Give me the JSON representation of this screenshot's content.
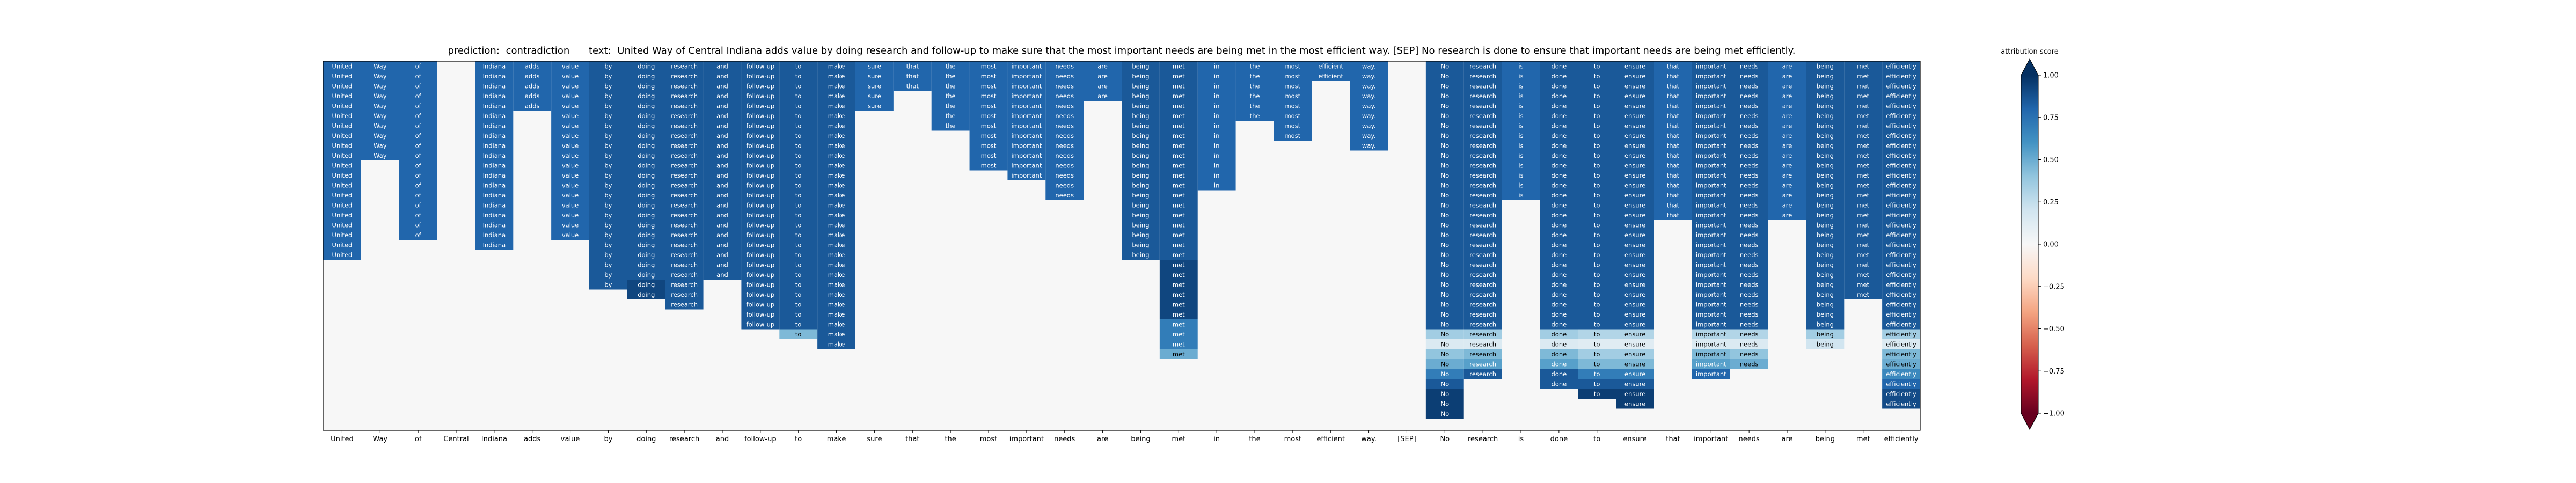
{
  "chart_data": {
    "type": "heatmap",
    "prediction_label": "prediction:",
    "prediction_value": "contradiction",
    "text_label": "text:",
    "text_value": "United Way of Central Indiana adds value by doing research and follow-up to make sure that the most important needs are being met in the most efficient way. [SEP] No research is done to ensure that important needs are being met efficiently.",
    "tokens": [
      "United",
      "Way",
      "of",
      "Central",
      "Indiana",
      "adds",
      "value",
      "by",
      "doing",
      "research",
      "and",
      "follow-up",
      "to",
      "make",
      "sure",
      "that",
      "the",
      "most",
      "important",
      "needs",
      "are",
      "being",
      "met",
      "in",
      "the",
      "most",
      "efficient",
      "way.",
      "[SEP]",
      "No",
      "research",
      "is",
      "done",
      "to",
      "ensure",
      "that",
      "important",
      "needs",
      "are",
      "being",
      "met",
      "efficiently"
    ],
    "row_count": 36,
    "columns": [
      {
        "runs": [
          [
            0,
            20,
            0.8
          ]
        ]
      },
      {
        "runs": [
          [
            0,
            10,
            0.8
          ]
        ]
      },
      {
        "runs": [
          [
            0,
            18,
            0.8
          ]
        ]
      },
      {
        "runs": [
          [
            0,
            1,
            0
          ]
        ]
      },
      {
        "runs": [
          [
            0,
            19,
            0.8
          ]
        ]
      },
      {
        "runs": [
          [
            0,
            5,
            0.8
          ]
        ]
      },
      {
        "runs": [
          [
            0,
            18,
            0.8
          ]
        ]
      },
      {
        "runs": [
          [
            0,
            23,
            0.85
          ]
        ]
      },
      {
        "runs": [
          [
            0,
            22,
            0.85
          ],
          [
            22,
            24,
            0.92
          ]
        ]
      },
      {
        "runs": [
          [
            0,
            25,
            0.85
          ]
        ]
      },
      {
        "runs": [
          [
            0,
            22,
            0.85
          ]
        ]
      },
      {
        "runs": [
          [
            0,
            27,
            0.85
          ]
        ]
      },
      {
        "runs": [
          [
            0,
            27,
            0.85
          ],
          [
            27,
            28,
            0.45
          ]
        ]
      },
      {
        "runs": [
          [
            0,
            29,
            0.85
          ]
        ]
      },
      {
        "runs": [
          [
            0,
            5,
            0.8
          ]
        ]
      },
      {
        "runs": [
          [
            0,
            3,
            0.8
          ]
        ]
      },
      {
        "runs": [
          [
            0,
            7,
            0.8
          ]
        ]
      },
      {
        "runs": [
          [
            0,
            11,
            0.8
          ]
        ]
      },
      {
        "runs": [
          [
            0,
            12,
            0.8
          ]
        ]
      },
      {
        "runs": [
          [
            0,
            14,
            0.8
          ]
        ]
      },
      {
        "runs": [
          [
            0,
            4,
            0.8
          ]
        ]
      },
      {
        "runs": [
          [
            0,
            20,
            0.85
          ]
        ]
      },
      {
        "runs": [
          [
            0,
            20,
            0.85
          ],
          [
            20,
            26,
            0.92
          ],
          [
            26,
            29,
            0.7
          ],
          [
            29,
            30,
            0.5
          ]
        ]
      },
      {
        "runs": [
          [
            0,
            13,
            0.8
          ]
        ]
      },
      {
        "runs": [
          [
            0,
            6,
            0.8
          ]
        ]
      },
      {
        "runs": [
          [
            0,
            8,
            0.8
          ]
        ]
      },
      {
        "runs": [
          [
            0,
            2,
            0.8
          ]
        ]
      },
      {
        "runs": [
          [
            0,
            9,
            0.8
          ]
        ]
      },
      {
        "runs": [
          [
            0,
            1,
            0
          ]
        ]
      },
      {
        "runs": [
          [
            0,
            27,
            0.85
          ],
          [
            27,
            28,
            0.35
          ],
          [
            28,
            29,
            0.15
          ],
          [
            29,
            30,
            0.4
          ],
          [
            30,
            31,
            0.5
          ],
          [
            31,
            32,
            0.7
          ],
          [
            32,
            33,
            0.85
          ],
          [
            33,
            36,
            0.95
          ]
        ]
      },
      {
        "runs": [
          [
            0,
            27,
            0.85
          ],
          [
            27,
            28,
            0.35
          ],
          [
            28,
            29,
            0.15
          ],
          [
            29,
            30,
            0.45
          ],
          [
            30,
            31,
            0.55
          ],
          [
            31,
            32,
            0.85
          ]
        ]
      },
      {
        "runs": [
          [
            0,
            14,
            0.8
          ]
        ]
      },
      {
        "runs": [
          [
            0,
            27,
            0.85
          ],
          [
            27,
            28,
            0.35
          ],
          [
            28,
            29,
            0.15
          ],
          [
            29,
            30,
            0.45
          ],
          [
            30,
            31,
            0.55
          ],
          [
            31,
            32,
            0.85
          ],
          [
            32,
            33,
            0.85
          ]
        ]
      },
      {
        "runs": [
          [
            0,
            27,
            0.85
          ],
          [
            27,
            28,
            0.3
          ],
          [
            28,
            29,
            0.12
          ],
          [
            29,
            30,
            0.35
          ],
          [
            30,
            31,
            0.45
          ],
          [
            31,
            32,
            0.7
          ],
          [
            32,
            33,
            0.85
          ],
          [
            33,
            34,
            0.95
          ]
        ]
      },
      {
        "runs": [
          [
            0,
            27,
            0.85
          ],
          [
            27,
            28,
            0.3
          ],
          [
            28,
            29,
            0.12
          ],
          [
            29,
            30,
            0.35
          ],
          [
            30,
            31,
            0.45
          ],
          [
            31,
            32,
            0.7
          ],
          [
            32,
            33,
            0.85
          ],
          [
            33,
            35,
            0.95
          ]
        ]
      },
      {
        "runs": [
          [
            0,
            16,
            0.8
          ]
        ]
      },
      {
        "runs": [
          [
            0,
            27,
            0.85
          ],
          [
            27,
            28,
            0.3
          ],
          [
            28,
            29,
            0.15
          ],
          [
            29,
            30,
            0.45
          ],
          [
            30,
            31,
            0.55
          ],
          [
            31,
            32,
            0.8
          ]
        ]
      },
      {
        "runs": [
          [
            0,
            27,
            0.85
          ],
          [
            27,
            28,
            0.3
          ],
          [
            28,
            29,
            0.15
          ],
          [
            29,
            30,
            0.4
          ],
          [
            30,
            31,
            0.5
          ]
        ]
      },
      {
        "runs": [
          [
            0,
            16,
            0.8
          ]
        ]
      },
      {
        "runs": [
          [
            0,
            27,
            0.85
          ],
          [
            27,
            28,
            0.35
          ],
          [
            28,
            29,
            0.2
          ]
        ]
      },
      {
        "runs": [
          [
            0,
            24,
            0.85
          ]
        ]
      },
      {
        "runs": [
          [
            0,
            27,
            0.85
          ],
          [
            27,
            28,
            0.35
          ],
          [
            28,
            29,
            0.15
          ],
          [
            29,
            30,
            0.45
          ],
          [
            30,
            31,
            0.5
          ],
          [
            31,
            32,
            0.65
          ],
          [
            32,
            33,
            0.8
          ],
          [
            33,
            35,
            0.9
          ]
        ]
      }
    ],
    "colorbar": {
      "label": "attribution score",
      "ticks": [
        "1.00",
        "0.75",
        "0.50",
        "0.25",
        "0.00",
        "−0.25",
        "−0.50",
        "−0.75",
        "−1.00"
      ],
      "min": -1,
      "max": 1
    }
  }
}
